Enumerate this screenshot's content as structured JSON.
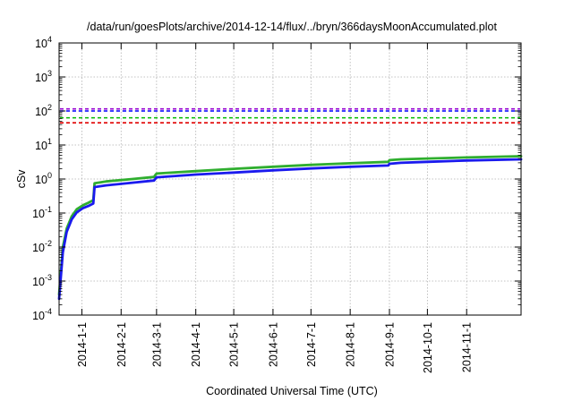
{
  "chart_data": {
    "type": "line",
    "title": "/data/run/goesPlots/archive/2014-12-14/flux/../bryn/366daysMoonAccumulated.plot",
    "xlabel": "Coordinated Universal Time (UTC)",
    "ylabel": "cSv",
    "yscale": "log",
    "ylim": [
      0.0001,
      10000
    ],
    "xlim": [
      "2013-12-14",
      "2014-12-14"
    ],
    "grid": true,
    "legend": "none",
    "x_ticks": [
      "2014-1-1",
      "2014-2-1",
      "2014-3-1",
      "2014-4-1",
      "2014-5-1",
      "2014-6-1",
      "2014-7-1",
      "2014-8-1",
      "2014-9-1",
      "2014-10-1",
      "2014-11-1"
    ],
    "y_ticks": [
      {
        "base": "10",
        "exp": "-4"
      },
      {
        "base": "10",
        "exp": "-3"
      },
      {
        "base": "10",
        "exp": "-2"
      },
      {
        "base": "10",
        "exp": "-1"
      },
      {
        "base": "10",
        "exp": "0"
      },
      {
        "base": "10",
        "exp": "1"
      },
      {
        "base": "10",
        "exp": "2"
      },
      {
        "base": "10",
        "exp": "3"
      },
      {
        "base": "10",
        "exp": "4"
      }
    ],
    "thresholds": [
      {
        "value": 115,
        "color": "#9400d3"
      },
      {
        "value": 100,
        "color": "#0000ff"
      },
      {
        "value": 63,
        "color": "#00bb00"
      },
      {
        "value": 45,
        "color": "#e00000"
      }
    ],
    "series": [
      {
        "color": "#2fae2f",
        "x": [
          "2013-12-14",
          "2013-12-17",
          "2013-12-20",
          "2013-12-24",
          "2013-12-28",
          "2014-01-02",
          "2014-01-06",
          "2014-01-10",
          "2014-01-11",
          "2014-01-20",
          "2014-02-10",
          "2014-02-27",
          "2014-02-28",
          "2014-03-01",
          "2014-04-01",
          "2014-05-01",
          "2014-06-01",
          "2014-07-01",
          "2014-08-01",
          "2014-08-31",
          "2014-09-01",
          "2014-09-10",
          "2014-10-01",
          "2014-11-01",
          "2014-12-14"
        ],
        "y": [
          0.0004,
          0.01,
          0.035,
          0.08,
          0.13,
          0.17,
          0.2,
          0.24,
          0.75,
          0.85,
          1.0,
          1.15,
          1.3,
          1.45,
          1.7,
          2.0,
          2.3,
          2.6,
          2.9,
          3.2,
          3.6,
          3.8,
          4.0,
          4.3,
          4.7
        ]
      },
      {
        "color": "#1a1aee",
        "x": [
          "2013-12-14",
          "2013-12-17",
          "2013-12-20",
          "2013-12-24",
          "2013-12-28",
          "2014-01-02",
          "2014-01-06",
          "2014-01-10",
          "2014-01-11",
          "2014-01-20",
          "2014-02-10",
          "2014-02-27",
          "2014-02-28",
          "2014-03-01",
          "2014-04-01",
          "2014-05-01",
          "2014-06-01",
          "2014-07-01",
          "2014-08-01",
          "2014-08-31",
          "2014-09-01",
          "2014-09-10",
          "2014-10-01",
          "2014-11-01",
          "2014-12-14"
        ],
        "y": [
          0.0003,
          0.007,
          0.028,
          0.065,
          0.105,
          0.14,
          0.16,
          0.19,
          0.58,
          0.65,
          0.78,
          0.9,
          1.0,
          1.12,
          1.35,
          1.55,
          1.8,
          2.05,
          2.3,
          2.5,
          2.8,
          3.0,
          3.2,
          3.5,
          3.8
        ]
      }
    ]
  }
}
